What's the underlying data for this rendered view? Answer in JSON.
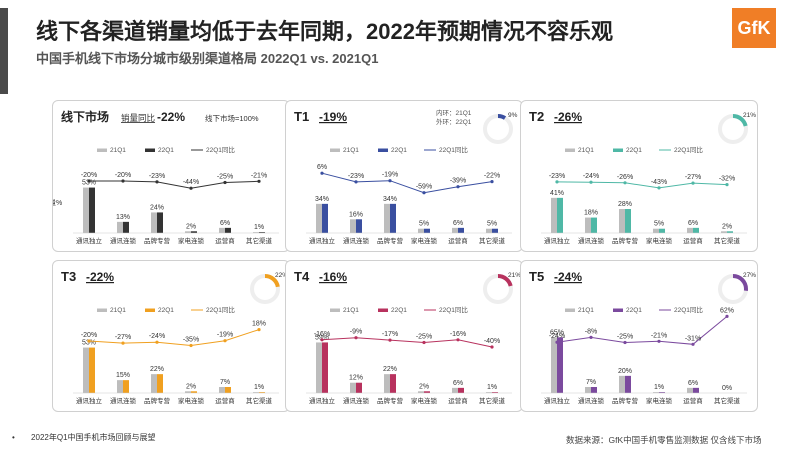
{
  "header": {
    "title": "线下各渠道销量均低于去年同期，2022年预期情况不容乐观",
    "subtitle": "中国手机线下市场分城市级别渠道格局 2022Q1 vs. 2021Q1",
    "logo": "GfK"
  },
  "footer": {
    "bullet": "•",
    "note": "2022年Q1中国手机市场回顾与展望",
    "source": "数据来源：GfK中国手机零售监测数据 仅含线下市场"
  },
  "chart_data": [
    {
      "type": "bar",
      "title": "线下市场",
      "yoy_label": "销量同比",
      "yoy_value": "-22%",
      "share_note": "线下市场=100%",
      "y_side_label": "销量%",
      "color": "#333333",
      "legend": [
        "21Q1",
        "22Q1",
        "22Q1同比"
      ],
      "categories": [
        "通讯独立",
        "通讯连锁",
        "品牌专营",
        "家电连锁",
        "运营商",
        "其它渠道"
      ],
      "series": [
        {
          "name": "21Q1",
          "values": [
            53,
            13,
            24,
            2,
            6,
            1
          ]
        },
        {
          "name": "22Q1",
          "values": [
            53,
            13,
            24,
            2,
            6,
            1
          ]
        }
      ],
      "yoy": [
        -20,
        -20,
        -23,
        -44,
        -25,
        -21
      ],
      "bar_labels": [
        "53%",
        "13%",
        "24%",
        "2%",
        "6%",
        "1%"
      ],
      "yoy_labels": [
        "-20%",
        "-20%",
        "-23%",
        "-44%",
        "-25%",
        "-21%"
      ]
    },
    {
      "type": "bar",
      "title": "T1",
      "yoy_value": "-19%",
      "inner_ring": "内环：21Q1",
      "outer_ring": "外环：22Q1",
      "ring_label": "9%",
      "ring_share": 0.09,
      "color": "#3a4fa0",
      "legend": [
        "21Q1",
        "22Q1",
        "22Q1同比"
      ],
      "categories": [
        "通讯独立",
        "通讯连锁",
        "品牌专营",
        "家电连锁",
        "运营商",
        "其它渠道"
      ],
      "series": [
        {
          "name": "21Q1",
          "values": [
            34,
            16,
            34,
            5,
            6,
            5
          ]
        },
        {
          "name": "22Q1",
          "values": [
            34,
            16,
            34,
            5,
            6,
            5
          ]
        }
      ],
      "yoy": [
        6,
        -23,
        -19,
        -59,
        -39,
        -22
      ],
      "bar_labels": [
        "34%",
        "16%",
        "34%",
        "5%",
        "6%",
        "5%"
      ],
      "yoy_labels": [
        "6%",
        "-23%",
        "-19%",
        "-59%",
        "-39%",
        "-22%"
      ]
    },
    {
      "type": "bar",
      "title": "T2",
      "yoy_value": "-26%",
      "ring_label": "21%",
      "ring_share": 0.21,
      "color": "#4fb8a6",
      "legend": [
        "21Q1",
        "22Q1",
        "22Q1同比"
      ],
      "categories": [
        "通讯独立",
        "通讯连锁",
        "品牌专营",
        "家电连锁",
        "运营商",
        "其它渠道"
      ],
      "series": [
        {
          "name": "21Q1",
          "values": [
            41,
            18,
            28,
            5,
            6,
            2
          ]
        },
        {
          "name": "22Q1",
          "values": [
            41,
            18,
            28,
            5,
            6,
            2
          ]
        }
      ],
      "yoy": [
        -23,
        -24,
        -26,
        -43,
        -27,
        -32
      ],
      "bar_labels": [
        "41%",
        "18%",
        "28%",
        "5%",
        "6%",
        "2%"
      ],
      "yoy_labels": [
        "-23%",
        "-24%",
        "-26%",
        "-43%",
        "-27%",
        "-32%"
      ]
    },
    {
      "type": "bar",
      "title": "T3",
      "yoy_value": "-22%",
      "ring_label": "22%",
      "ring_share": 0.22,
      "color": "#f0a020",
      "legend": [
        "21Q1",
        "22Q1",
        "22Q1同比"
      ],
      "categories": [
        "通讯独立",
        "通讯连锁",
        "品牌专营",
        "家电连锁",
        "运营商",
        "其它渠道"
      ],
      "series": [
        {
          "name": "21Q1",
          "values": [
            53,
            15,
            22,
            2,
            7,
            1
          ]
        },
        {
          "name": "22Q1",
          "values": [
            53,
            15,
            22,
            2,
            7,
            1
          ]
        }
      ],
      "yoy": [
        -20,
        -27,
        -24,
        -35,
        -19,
        18
      ],
      "bar_labels": [
        "53%",
        "15%",
        "22%",
        "2%",
        "7%",
        "1%"
      ],
      "yoy_labels": [
        "-20%",
        "-27%",
        "-24%",
        "-35%",
        "-19%",
        "18%"
      ]
    },
    {
      "type": "bar",
      "title": "T4",
      "yoy_value": "-16%",
      "ring_label": "21%",
      "ring_share": 0.21,
      "color": "#b8325e",
      "legend": [
        "21Q1",
        "22Q1",
        "22Q1同比"
      ],
      "categories": [
        "通讯独立",
        "通讯连锁",
        "品牌专营",
        "家电连锁",
        "运营商",
        "其它渠道"
      ],
      "series": [
        {
          "name": "21Q1",
          "values": [
            59,
            12,
            22,
            2,
            6,
            1
          ]
        },
        {
          "name": "22Q1",
          "values": [
            59,
            12,
            22,
            2,
            6,
            1
          ]
        }
      ],
      "yoy": [
        -16,
        -9,
        -17,
        -25,
        -16,
        -40
      ],
      "bar_labels": [
        "59%",
        "12%",
        "22%",
        "2%",
        "6%",
        "1%"
      ],
      "yoy_labels": [
        "-16%",
        "-9%",
        "-17%",
        "-25%",
        "-16%",
        "-40%"
      ]
    },
    {
      "type": "bar",
      "title": "T5",
      "yoy_value": "-24%",
      "ring_label": "27%",
      "ring_share": 0.27,
      "color": "#7b4a9e",
      "legend": [
        "21Q1",
        "22Q1",
        "22Q1同比"
      ],
      "categories": [
        "通讯独立",
        "通讯连锁",
        "品牌专营",
        "家电连锁",
        "运营商",
        "其它渠道"
      ],
      "series": [
        {
          "name": "21Q1",
          "values": [
            65,
            7,
            20,
            1,
            6,
            0
          ]
        },
        {
          "name": "22Q1",
          "values": [
            65,
            7,
            20,
            1,
            6,
            0
          ]
        }
      ],
      "yoy": [
        -24,
        -8,
        -25,
        -21,
        -31,
        62
      ],
      "bar_labels": [
        "65%",
        "7%",
        "20%",
        "1%",
        "6%",
        "0%"
      ],
      "yoy_labels": [
        "-24%",
        "-8%",
        "-25%",
        "-21%",
        "-31%",
        "62%"
      ]
    }
  ]
}
